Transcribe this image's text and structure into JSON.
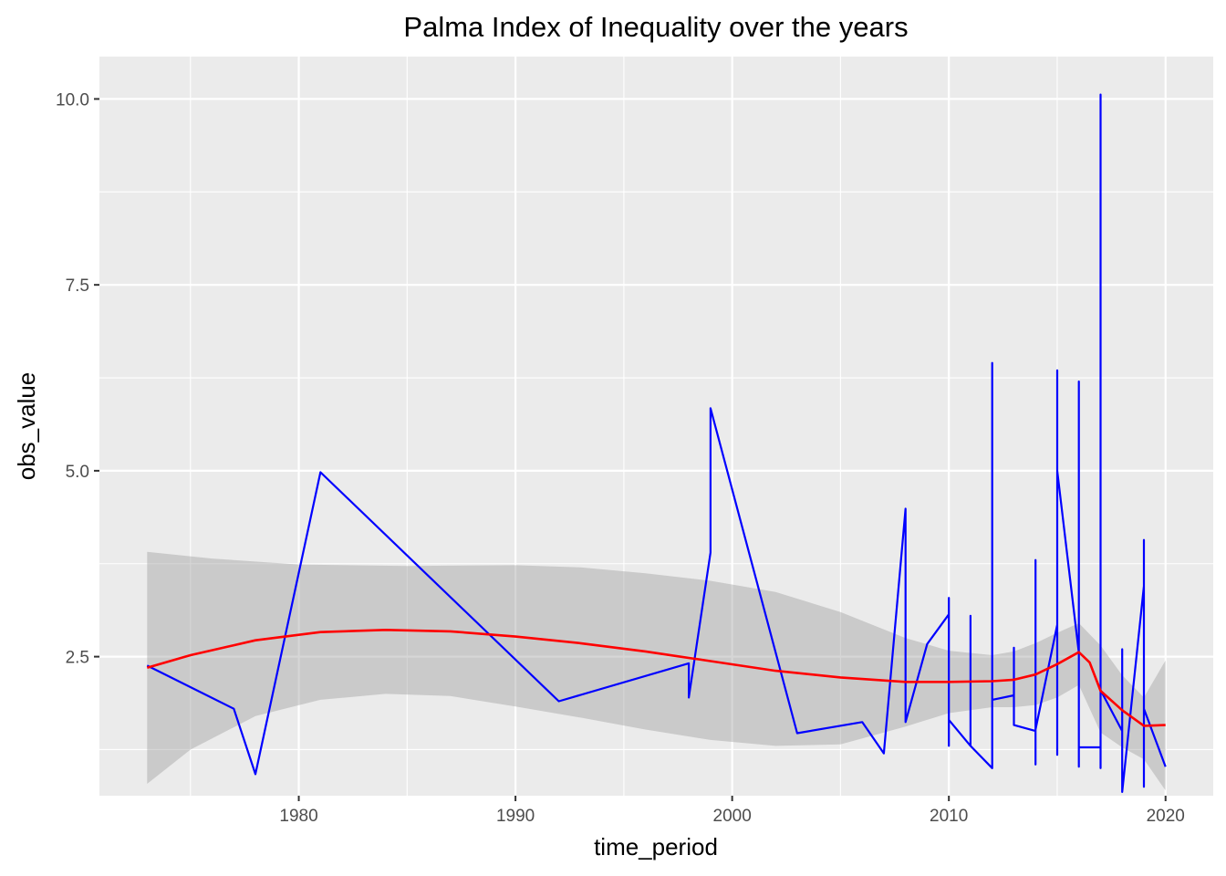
{
  "chart_data": {
    "type": "line",
    "title": "Palma Index of Inequality over the years",
    "xlabel": "time_period",
    "ylabel": "obs_value",
    "xlim": [
      1970.8,
      2022.2
    ],
    "ylim": [
      0.63,
      10.57
    ],
    "x_ticks": [
      1980,
      1990,
      2000,
      2010,
      2020
    ],
    "x_tick_labels": [
      "1980",
      "1990",
      "2000",
      "2010",
      "2020"
    ],
    "x_minor_ticks": [
      1975,
      1985,
      1995,
      2005,
      2015
    ],
    "y_ticks": [
      2.5,
      5.0,
      7.5,
      10.0
    ],
    "y_tick_labels": [
      "2.5",
      "5.0",
      "7.5",
      "10.0"
    ],
    "y_minor_ticks": [
      1.25,
      3.75,
      6.25,
      8.75
    ],
    "grid": true,
    "background": "#EBEBEB",
    "series": [
      {
        "type": "line",
        "color": "#0000FF",
        "points": [
          [
            1973,
            2.38
          ],
          [
            1977,
            1.8
          ],
          [
            1978,
            0.92
          ],
          [
            1981,
            4.98
          ],
          [
            1992,
            1.9
          ],
          [
            1998,
            2.41
          ],
          [
            1998,
            1.95
          ],
          [
            1999,
            3.9
          ],
          [
            1999,
            5.84
          ],
          [
            2003,
            1.47
          ],
          [
            2006,
            1.62
          ],
          [
            2007,
            1.2
          ],
          [
            2008,
            4.49
          ],
          [
            2008,
            1.62
          ],
          [
            2009,
            2.67
          ],
          [
            2010,
            3.07
          ],
          [
            2010,
            3.29
          ],
          [
            2010,
            1.3
          ],
          [
            2010,
            1.65
          ],
          [
            2011,
            1.3
          ],
          [
            2011,
            3.05
          ],
          [
            2011,
            1.3
          ],
          [
            2012,
            1.0
          ],
          [
            2012,
            6.45
          ],
          [
            2012,
            1.92
          ],
          [
            2013,
            1.98
          ],
          [
            2013,
            2.62
          ],
          [
            2013,
            1.58
          ],
          [
            2014,
            1.5
          ],
          [
            2014,
            3.8
          ],
          [
            2014,
            1.05
          ],
          [
            2014,
            1.52
          ],
          [
            2015,
            2.93
          ],
          [
            2015,
            6.35
          ],
          [
            2015,
            1.18
          ],
          [
            2015,
            5.0
          ],
          [
            2016,
            2.55
          ],
          [
            2016,
            6.2
          ],
          [
            2016,
            1.02
          ],
          [
            2016,
            1.28
          ],
          [
            2017,
            1.28
          ],
          [
            2017,
            10.06
          ],
          [
            2017,
            1.0
          ],
          [
            2017,
            2.05
          ],
          [
            2018,
            1.5
          ],
          [
            2018,
            2.6
          ],
          [
            2018,
            0.68
          ],
          [
            2019,
            3.45
          ],
          [
            2019,
            4.07
          ],
          [
            2019,
            0.75
          ],
          [
            2019,
            1.8
          ],
          [
            2020,
            1.02
          ]
        ]
      },
      {
        "type": "smooth",
        "color": "#FF0000",
        "points": [
          [
            1973,
            2.35
          ],
          [
            1975,
            2.52
          ],
          [
            1978,
            2.72
          ],
          [
            1981,
            2.83
          ],
          [
            1984,
            2.86
          ],
          [
            1987,
            2.84
          ],
          [
            1990,
            2.77
          ],
          [
            1993,
            2.68
          ],
          [
            1996,
            2.57
          ],
          [
            1999,
            2.44
          ],
          [
            2002,
            2.31
          ],
          [
            2005,
            2.22
          ],
          [
            2008,
            2.16
          ],
          [
            2010,
            2.16
          ],
          [
            2012,
            2.17
          ],
          [
            2013,
            2.19
          ],
          [
            2014,
            2.26
          ],
          [
            2015,
            2.4
          ],
          [
            2016,
            2.56
          ],
          [
            2016.5,
            2.42
          ],
          [
            2017,
            2.04
          ],
          [
            2018,
            1.78
          ],
          [
            2019,
            1.57
          ],
          [
            2020,
            1.58
          ]
        ]
      }
    ],
    "confidence_band": {
      "color": "#999999",
      "upper": [
        [
          1973,
          3.91
        ],
        [
          1976,
          3.82
        ],
        [
          1980,
          3.74
        ],
        [
          1985,
          3.72
        ],
        [
          1990,
          3.73
        ],
        [
          1993,
          3.7
        ],
        [
          1996,
          3.62
        ],
        [
          1999,
          3.52
        ],
        [
          2002,
          3.37
        ],
        [
          2005,
          3.1
        ],
        [
          2008,
          2.75
        ],
        [
          2010,
          2.58
        ],
        [
          2012,
          2.52
        ],
        [
          2013,
          2.57
        ],
        [
          2014,
          2.68
        ],
        [
          2015,
          2.82
        ],
        [
          2016,
          2.95
        ],
        [
          2017,
          2.65
        ],
        [
          2018,
          2.25
        ],
        [
          2019,
          1.95
        ],
        [
          2020,
          2.45
        ]
      ],
      "lower": [
        [
          1973,
          0.79
        ],
        [
          1975,
          1.25
        ],
        [
          1978,
          1.7
        ],
        [
          1981,
          1.92
        ],
        [
          1984,
          2.0
        ],
        [
          1987,
          1.97
        ],
        [
          1990,
          1.83
        ],
        [
          1993,
          1.68
        ],
        [
          1996,
          1.52
        ],
        [
          1999,
          1.38
        ],
        [
          2002,
          1.3
        ],
        [
          2005,
          1.32
        ],
        [
          2008,
          1.56
        ],
        [
          2010,
          1.74
        ],
        [
          2012,
          1.82
        ],
        [
          2013,
          1.82
        ],
        [
          2014,
          1.85
        ],
        [
          2015,
          1.95
        ],
        [
          2016,
          2.12
        ],
        [
          2017,
          1.48
        ],
        [
          2018,
          1.28
        ],
        [
          2019,
          1.12
        ],
        [
          2020,
          0.7
        ]
      ]
    }
  }
}
